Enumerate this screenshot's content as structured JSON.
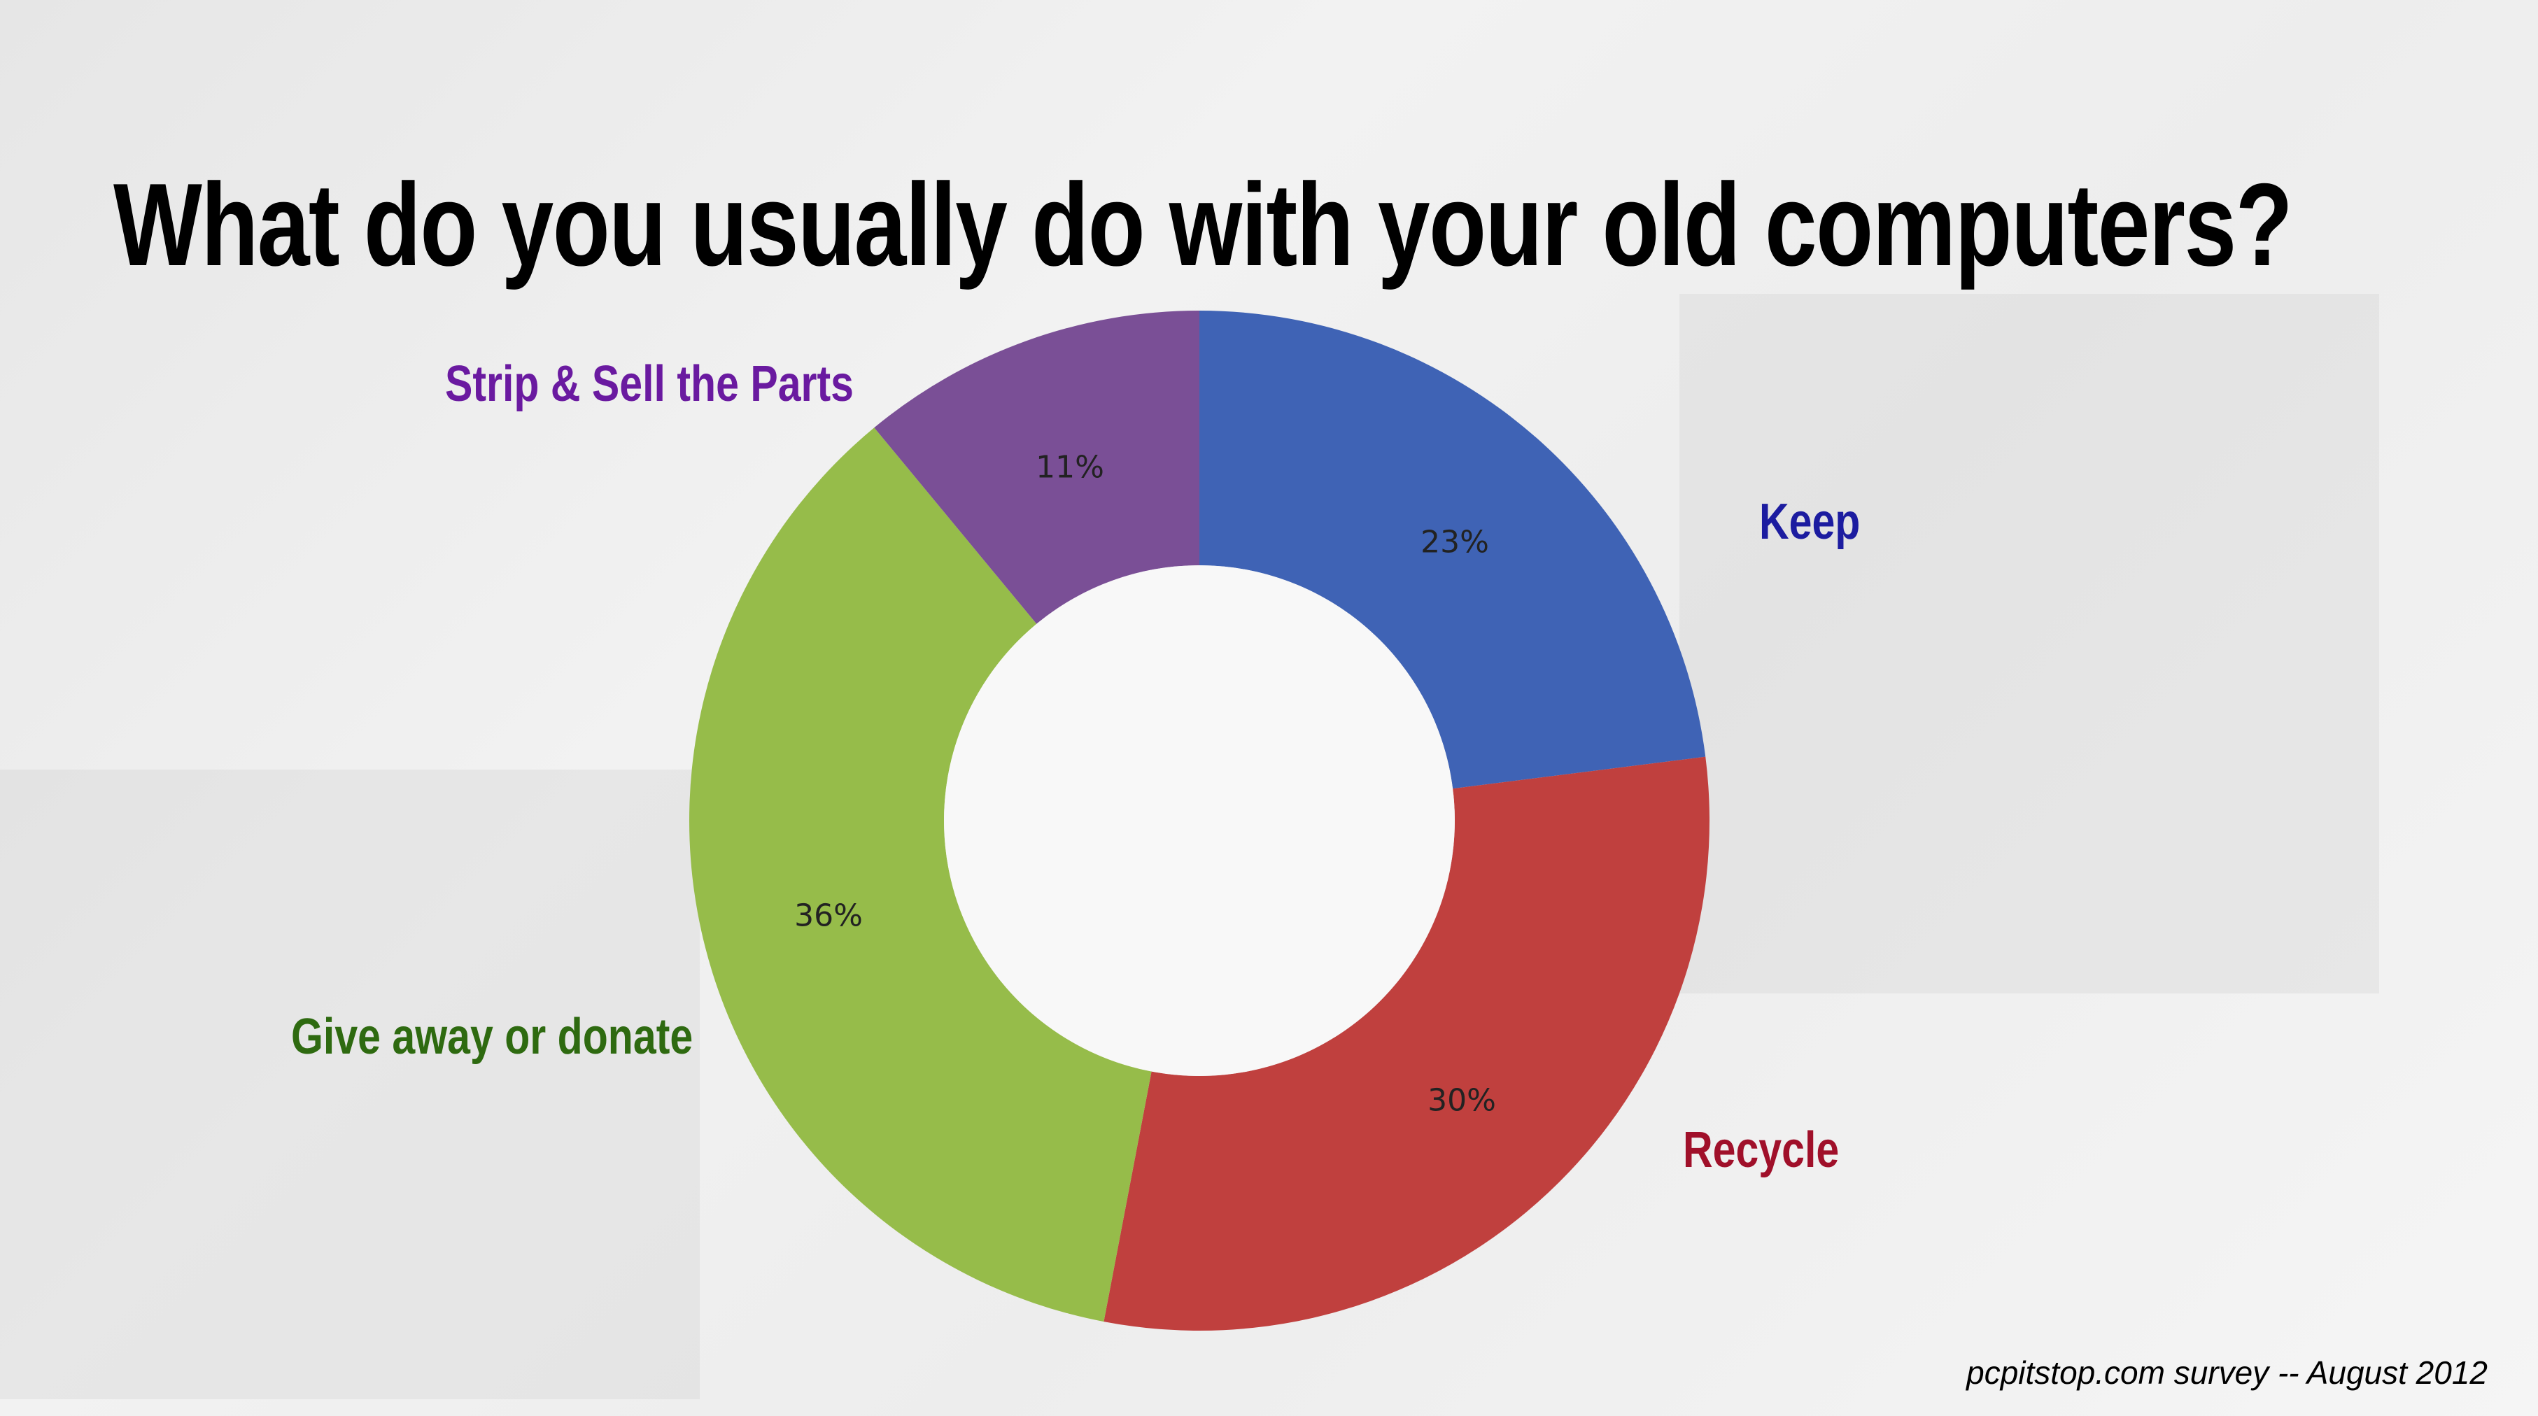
{
  "title": "What do you usually do with your old computers?",
  "footer": "pcpitstop.com survey -- August 2012",
  "chart_data": {
    "type": "pie",
    "donut": true,
    "start": "top",
    "direction": "clockwise",
    "slices": [
      {
        "label": "Keep",
        "value": 23,
        "value_label": "23%",
        "color": "#3f63b5",
        "label_color": "#1c1ca0"
      },
      {
        "label": "Recycle",
        "value": 30,
        "value_label": "30%",
        "color": "#c0403e",
        "label_color": "#a0102a"
      },
      {
        "label": "Give away or donate",
        "value": 36,
        "value_label": "36%",
        "color": "#96bc4a",
        "label_color": "#2e6a10"
      },
      {
        "label": "Strip & Sell the Parts",
        "value": 11,
        "value_label": "11%",
        "color": "#7a4f96",
        "label_color": "#6a1aa0"
      }
    ]
  }
}
